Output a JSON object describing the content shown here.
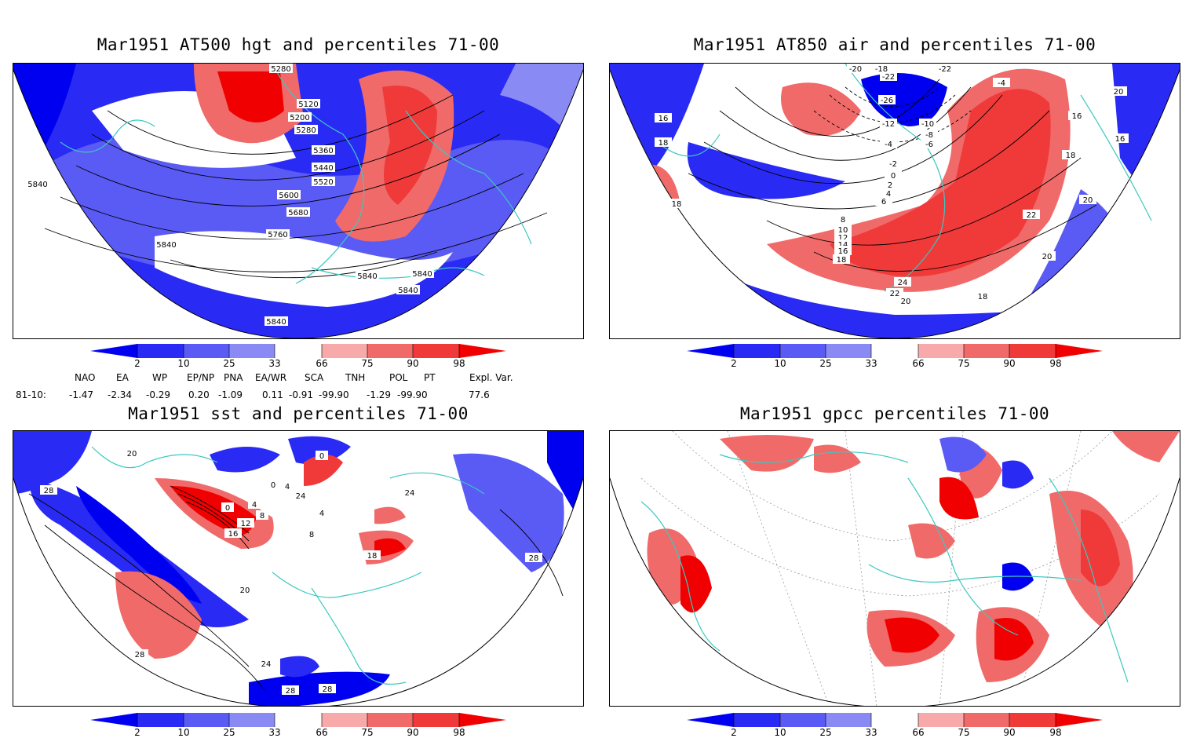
{
  "panels": [
    {
      "id": "p1",
      "title": "Mar1951 AT500 hgt and percentiles 71-00",
      "contour_labels": [
        "5280",
        "5120",
        "5200",
        "5280",
        "5360",
        "5440",
        "5520",
        "5600",
        "5680",
        "5760",
        "5840",
        "5840",
        "5840",
        "5840",
        "5840",
        "5840"
      ]
    },
    {
      "id": "p2",
      "title": "Mar1951 AT850 air and percentiles 71-00",
      "contour_labels": [
        "-20",
        "-18",
        "-22",
        "-22",
        "-26",
        "-12",
        "-10",
        "-8",
        "-6",
        "-4",
        "-2",
        "0",
        "2",
        "4",
        "6",
        "8",
        "10",
        "12",
        "14",
        "16",
        "18",
        "16",
        "16",
        "18",
        "18",
        "18",
        "20",
        "20",
        "20",
        "22",
        "24",
        "22",
        "20",
        "18",
        "-4",
        "16"
      ]
    },
    {
      "id": "p3",
      "title": "Mar1951 sst and percentiles 71-00",
      "contour_labels": [
        "20",
        "28",
        "0",
        "0",
        "0",
        "4",
        "8",
        "12",
        "16",
        "4",
        "8",
        "24",
        "24",
        "4",
        "18",
        "20",
        "28",
        "28",
        "24",
        "28",
        "28"
      ]
    },
    {
      "id": "p4",
      "title": "Mar1951 gpcc percentiles 71-00",
      "contour_labels": []
    }
  ],
  "colorbar": {
    "labels": [
      "2",
      "10",
      "25",
      "33",
      "66",
      "75",
      "90",
      "98"
    ],
    "colors": [
      "#0000f0",
      "#2a2af5",
      "#5a5af5",
      "#8a8af5",
      "#aaaaf7",
      "#ffffff",
      "#f8aaaa",
      "#f06a6a",
      "#f03a3a",
      "#f00000"
    ]
  },
  "indices": {
    "row_label": "81-10:",
    "headers": [
      "NAO",
      "EA",
      "WP",
      "EP/NP",
      "PNA",
      "EA/WR",
      "SCA",
      "TNH",
      "POL",
      "PT",
      "Expl. Var."
    ],
    "values": [
      "-1.47",
      "-2.34",
      "-0.29",
      "0.20",
      "-1.09",
      "0.11",
      "-0.91",
      "-99.90",
      "-1.29",
      "-99.90",
      "77.6"
    ]
  }
}
